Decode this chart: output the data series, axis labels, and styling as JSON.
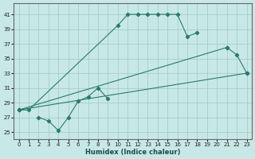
{
  "bg_color": "#c8e8e8",
  "grid_color": "#a8cccc",
  "line_color": "#2a7a6a",
  "xlabel": "Humidex (Indice chaleur)",
  "xlim": [
    -0.5,
    23.5
  ],
  "ylim": [
    24.0,
    42.5
  ],
  "yticks": [
    25,
    27,
    29,
    31,
    33,
    35,
    37,
    39,
    41
  ],
  "xticks": [
    0,
    1,
    2,
    3,
    4,
    5,
    6,
    7,
    8,
    9,
    10,
    11,
    12,
    13,
    14,
    15,
    16,
    17,
    18,
    19,
    20,
    21,
    22,
    23
  ],
  "segments": [
    {
      "x": [
        0,
        1,
        10,
        11,
        12,
        13,
        14,
        15,
        16,
        17,
        18
      ],
      "y": [
        28.0,
        28.0,
        39.5,
        41.0,
        41.0,
        41.0,
        41.0,
        41.0,
        41.0,
        38.0,
        38.5
      ]
    },
    {
      "x": [
        2,
        3,
        4,
        5,
        6,
        7,
        8,
        9
      ],
      "y": [
        27.0,
        26.5,
        25.2,
        27.0,
        29.2,
        29.8,
        31.0,
        29.5
      ]
    },
    {
      "x": [
        21,
        22,
        23
      ],
      "y": [
        36.5,
        35.5,
        33.0
      ]
    },
    {
      "x": [
        0,
        23
      ],
      "y": [
        28.0,
        33.0
      ]
    },
    {
      "x": [
        0,
        21
      ],
      "y": [
        28.0,
        36.5
      ]
    }
  ]
}
